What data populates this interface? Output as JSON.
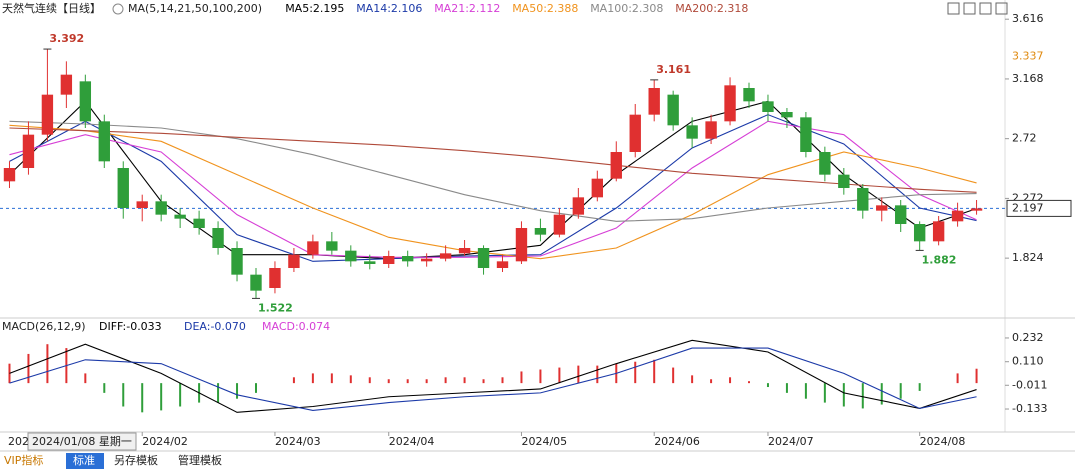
{
  "header": {
    "title": "天然气连续【日线】",
    "ma_label": "MA(5,14,21,50,100,200)"
  },
  "chart_data": [
    {
      "type": "candlestick",
      "xlim": [
        -0.5,
        52.5
      ],
      "ylim": [
        1.39,
        3.7
      ],
      "yticks": [
        3.616,
        3.168,
        2.72,
        2.272,
        1.824
      ],
      "up_color": "#e03030",
      "down_color": "#2f9e3a",
      "open": [
        2.4,
        2.5,
        2.75,
        3.05,
        3.15,
        2.85,
        2.5,
        2.2,
        2.25,
        2.15,
        2.12,
        2.05,
        1.9,
        1.7,
        1.6,
        1.75,
        1.85,
        1.95,
        1.88,
        1.8,
        1.78,
        1.84,
        1.8,
        1.82,
        1.86,
        1.9,
        1.75,
        1.8,
        2.05,
        2.0,
        2.15,
        2.28,
        2.42,
        2.62,
        2.9,
        3.05,
        2.82,
        2.72,
        2.85,
        3.1,
        3.0,
        2.92,
        2.88,
        2.62,
        2.45,
        2.35,
        2.18,
        2.22,
        2.08,
        1.95,
        2.1,
        2.18
      ],
      "high": [
        2.55,
        2.85,
        3.392,
        3.3,
        3.2,
        2.9,
        2.55,
        2.3,
        2.3,
        2.2,
        2.18,
        2.1,
        1.95,
        1.75,
        1.8,
        1.9,
        2.0,
        2.02,
        1.92,
        1.85,
        1.88,
        1.88,
        1.86,
        1.92,
        1.96,
        1.92,
        1.85,
        2.1,
        2.12,
        2.2,
        2.35,
        2.48,
        2.7,
        2.98,
        3.161,
        3.08,
        2.88,
        2.9,
        3.18,
        3.14,
        3.05,
        2.95,
        2.92,
        2.66,
        2.5,
        2.38,
        2.28,
        2.26,
        2.1,
        2.14,
        2.24,
        2.26
      ],
      "low": [
        2.35,
        2.45,
        2.7,
        2.95,
        2.8,
        2.5,
        2.12,
        2.1,
        2.1,
        2.05,
        2.0,
        1.85,
        1.65,
        1.522,
        1.56,
        1.72,
        1.82,
        1.85,
        1.76,
        1.74,
        1.75,
        1.76,
        1.76,
        1.8,
        1.84,
        1.7,
        1.72,
        1.78,
        1.95,
        1.98,
        2.12,
        2.25,
        2.4,
        2.58,
        2.85,
        2.78,
        2.65,
        2.68,
        2.82,
        2.95,
        2.85,
        2.8,
        2.58,
        2.4,
        2.3,
        2.12,
        2.1,
        2.02,
        1.882,
        1.92,
        2.06,
        2.15
      ],
      "close": [
        2.5,
        2.75,
        3.05,
        3.2,
        2.85,
        2.55,
        2.2,
        2.25,
        2.15,
        2.12,
        2.05,
        1.9,
        1.7,
        1.58,
        1.75,
        1.85,
        1.95,
        1.88,
        1.8,
        1.78,
        1.84,
        1.8,
        1.82,
        1.86,
        1.9,
        1.75,
        1.8,
        2.05,
        2.0,
        2.15,
        2.28,
        2.42,
        2.62,
        2.9,
        3.1,
        2.82,
        2.72,
        2.85,
        3.12,
        3.0,
        2.92,
        2.88,
        2.62,
        2.45,
        2.35,
        2.18,
        2.22,
        2.08,
        1.95,
        2.1,
        2.18,
        2.197
      ],
      "series": [
        {
          "name": "MA5:2.195",
          "color": "#000000",
          "x": [
            0,
            4,
            8,
            12,
            16,
            20,
            24,
            28,
            32,
            36,
            40,
            44,
            48,
            51
          ],
          "values": [
            2.45,
            3.0,
            2.25,
            1.85,
            1.85,
            1.82,
            1.85,
            1.92,
            2.45,
            2.85,
            3.0,
            2.45,
            2.05,
            2.195
          ]
        },
        {
          "name": "MA14:2.106",
          "color": "#1c3aa8",
          "x": [
            0,
            4,
            8,
            12,
            16,
            20,
            24,
            28,
            32,
            36,
            40,
            44,
            48,
            51
          ],
          "values": [
            2.55,
            2.85,
            2.55,
            2.0,
            1.8,
            1.82,
            1.84,
            1.85,
            2.2,
            2.65,
            2.9,
            2.68,
            2.2,
            2.106
          ]
        },
        {
          "name": "MA21:2.112",
          "color": "#d63fd6",
          "x": [
            0,
            4,
            8,
            12,
            16,
            20,
            24,
            28,
            32,
            36,
            40,
            44,
            48,
            51
          ],
          "values": [
            2.6,
            2.75,
            2.62,
            2.15,
            1.85,
            1.83,
            1.83,
            1.84,
            2.05,
            2.5,
            2.85,
            2.75,
            2.3,
            2.112
          ]
        },
        {
          "name": "MA50:2.388",
          "color": "#f0931e",
          "x": [
            0,
            4,
            8,
            12,
            16,
            20,
            24,
            28,
            32,
            36,
            40,
            44,
            48,
            51
          ],
          "values": [
            2.82,
            2.78,
            2.7,
            2.45,
            2.2,
            1.98,
            1.88,
            1.82,
            1.9,
            2.15,
            2.45,
            2.62,
            2.5,
            2.388
          ]
        },
        {
          "name": "MA100:2.308",
          "color": "#8a8a8a",
          "x": [
            0,
            4,
            8,
            12,
            16,
            20,
            24,
            28,
            32,
            36,
            40,
            44,
            48,
            51
          ],
          "values": [
            2.85,
            2.83,
            2.8,
            2.72,
            2.6,
            2.45,
            2.3,
            2.18,
            2.1,
            2.12,
            2.2,
            2.25,
            2.3,
            2.308
          ]
        },
        {
          "name": "MA200:2.318",
          "color": "#b04a3a",
          "x": [
            0,
            4,
            8,
            12,
            16,
            20,
            24,
            28,
            32,
            36,
            40,
            44,
            48,
            51
          ],
          "values": [
            2.8,
            2.78,
            2.76,
            2.73,
            2.7,
            2.67,
            2.63,
            2.58,
            2.52,
            2.46,
            2.42,
            2.38,
            2.34,
            2.318
          ]
        }
      ],
      "annotations": [
        {
          "x": 2,
          "value": 3.392,
          "position": "above"
        },
        {
          "x": 34,
          "value": 3.161,
          "position": "above"
        },
        {
          "x": 13,
          "value": 1.522,
          "position": "below"
        },
        {
          "x": 48,
          "value": 1.882,
          "position": "below"
        }
      ],
      "axis_marks": [
        {
          "value": 3.337,
          "color": "#e08a10"
        }
      ],
      "reference_line": {
        "value": 2.197,
        "color": "#2a6fd6"
      }
    },
    {
      "type": "macd",
      "title": "MACD(26,12,9)",
      "xlim": [
        -0.5,
        52.5
      ],
      "ylim": [
        -0.251,
        0.314
      ],
      "yticks": [
        0.232,
        {
          "value": 0.11,
          "label": "0.110"
        },
        -0.011,
        -0.133
      ],
      "histogram": {
        "name": "MACD:0.074",
        "up_color": "#e03030",
        "down_color": "#2f9e3a",
        "values": [
          0.1,
          0.15,
          0.2,
          0.18,
          0.05,
          -0.05,
          -0.12,
          -0.15,
          -0.14,
          -0.12,
          -0.1,
          -0.1,
          -0.08,
          -0.05,
          0.0,
          0.03,
          0.05,
          0.05,
          0.04,
          0.03,
          0.02,
          0.02,
          0.02,
          0.03,
          0.03,
          0.02,
          0.03,
          0.06,
          0.07,
          0.08,
          0.09,
          0.09,
          0.1,
          0.11,
          0.12,
          0.08,
          0.04,
          0.02,
          0.03,
          0.01,
          -0.02,
          -0.05,
          -0.08,
          -0.1,
          -0.12,
          -0.13,
          -0.11,
          -0.08,
          -0.04,
          0.0,
          0.05,
          0.074
        ]
      },
      "series": [
        {
          "name": "DIFF:-0.033",
          "color": "#000000",
          "x": [
            0,
            4,
            8,
            12,
            16,
            20,
            24,
            28,
            32,
            36,
            40,
            44,
            48,
            51
          ],
          "values": [
            0.05,
            0.2,
            0.05,
            -0.15,
            -0.12,
            -0.07,
            -0.05,
            -0.03,
            0.1,
            0.22,
            0.16,
            -0.05,
            -0.13,
            -0.033
          ]
        },
        {
          "name": "DEA:-0.070",
          "color": "#1c3aa8",
          "x": [
            0,
            4,
            8,
            12,
            16,
            20,
            24,
            28,
            32,
            36,
            40,
            44,
            48,
            51
          ],
          "values": [
            0.0,
            0.12,
            0.1,
            -0.06,
            -0.14,
            -0.1,
            -0.07,
            -0.05,
            0.05,
            0.18,
            0.18,
            0.05,
            -0.13,
            -0.07
          ]
        }
      ]
    }
  ],
  "x_axis": {
    "partial_label": "202",
    "crosshair_label": "2024/01/08 星期一",
    "ticks": [
      {
        "value": 7,
        "label": "2024/02"
      },
      {
        "value": 14,
        "label": "2024/03"
      },
      {
        "value": 20,
        "label": "2024/04"
      },
      {
        "value": 27,
        "label": "2024/05"
      },
      {
        "value": 34,
        "label": "2024/06"
      },
      {
        "value": 40,
        "label": "2024/07"
      },
      {
        "value": 48,
        "label": "2024/08"
      }
    ]
  },
  "toolbar": {
    "tabs": [
      "VIP指标",
      "标准",
      "另存模板",
      "管理模板"
    ]
  }
}
